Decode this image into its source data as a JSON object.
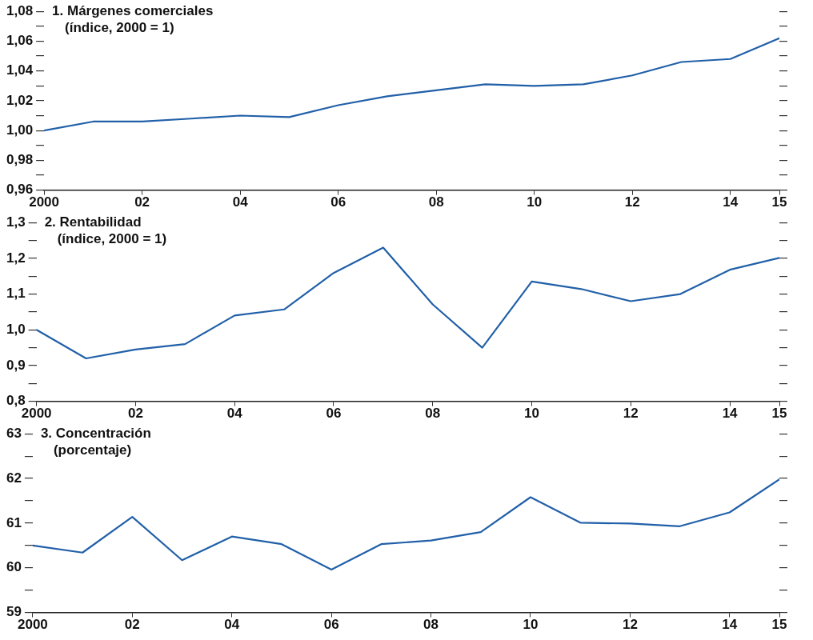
{
  "chart_data": [
    {
      "type": "line",
      "title": "1. Márgenes comerciales",
      "subtitle": "(índice, 2000 = 1)",
      "x": [
        2000,
        2001,
        2002,
        2003,
        2004,
        2005,
        2006,
        2007,
        2008,
        2009,
        2010,
        2011,
        2012,
        2013,
        2014,
        2015
      ],
      "series": [
        {
          "color": "#2160a8",
          "values": [
            1.0,
            1.006,
            1.006,
            1.008,
            1.01,
            1.009,
            1.017,
            1.023,
            1.027,
            1.031,
            1.03,
            1.031,
            1.037,
            1.046,
            1.048,
            1.062
          ]
        }
      ],
      "xlim": [
        2000,
        2015
      ],
      "xticks": [
        {
          "value": 2000,
          "label": "2000"
        },
        {
          "value": 2002,
          "label": "02"
        },
        {
          "value": 2004,
          "label": "04"
        },
        {
          "value": 2006,
          "label": "06"
        },
        {
          "value": 2008,
          "label": "08"
        },
        {
          "value": 2010,
          "label": "10"
        },
        {
          "value": 2012,
          "label": "12"
        },
        {
          "value": 2014,
          "label": "14"
        },
        {
          "value": 2015,
          "label": "15"
        }
      ],
      "ylim": [
        0.96,
        1.08
      ],
      "yticks": [
        {
          "value": 0.96,
          "label": "0,96"
        },
        {
          "value": 0.97,
          "label": null
        },
        {
          "value": 0.98,
          "label": "0,98"
        },
        {
          "value": 0.99,
          "label": null
        },
        {
          "value": 1.0,
          "label": "1,00"
        },
        {
          "value": 1.01,
          "label": null
        },
        {
          "value": 1.02,
          "label": "1,02"
        },
        {
          "value": 1.03,
          "label": null
        },
        {
          "value": 1.04,
          "label": "1,04"
        },
        {
          "value": 1.05,
          "label": null
        },
        {
          "value": 1.06,
          "label": "1,06"
        },
        {
          "value": 1.07,
          "label": null
        },
        {
          "value": 1.08,
          "label": "1,08"
        }
      ],
      "grid": false,
      "legend": false,
      "marker": "none",
      "line_style": "solid"
    },
    {
      "type": "line",
      "title": "2. Rentabilidad",
      "subtitle": "(índice, 2000 = 1)",
      "x": [
        2000,
        2001,
        2002,
        2003,
        2004,
        2005,
        2006,
        2007,
        2008,
        2009,
        2010,
        2011,
        2012,
        2013,
        2014,
        2015
      ],
      "series": [
        {
          "color": "#2160a8",
          "values": [
            1.0,
            0.92,
            0.945,
            0.96,
            1.04,
            1.057,
            1.159,
            1.23,
            1.071,
            0.95,
            1.135,
            1.114,
            1.08,
            1.1,
            1.168,
            1.201
          ]
        }
      ],
      "xlim": [
        2000,
        2015
      ],
      "xticks": [
        {
          "value": 2000,
          "label": "2000"
        },
        {
          "value": 2002,
          "label": "02"
        },
        {
          "value": 2004,
          "label": "04"
        },
        {
          "value": 2006,
          "label": "06"
        },
        {
          "value": 2008,
          "label": "08"
        },
        {
          "value": 2010,
          "label": "10"
        },
        {
          "value": 2012,
          "label": "12"
        },
        {
          "value": 2014,
          "label": "14"
        },
        {
          "value": 2015,
          "label": "15"
        }
      ],
      "ylim": [
        0.8,
        1.3
      ],
      "yticks": [
        {
          "value": 0.8,
          "label": "0,8"
        },
        {
          "value": 0.85,
          "label": null
        },
        {
          "value": 0.9,
          "label": "0,9"
        },
        {
          "value": 0.95,
          "label": null
        },
        {
          "value": 1.0,
          "label": "1,0"
        },
        {
          "value": 1.05,
          "label": null
        },
        {
          "value": 1.1,
          "label": "1,1"
        },
        {
          "value": 1.15,
          "label": null
        },
        {
          "value": 1.2,
          "label": "1,2"
        },
        {
          "value": 1.25,
          "label": null
        },
        {
          "value": 1.3,
          "label": "1,3"
        }
      ],
      "grid": false,
      "legend": false,
      "marker": "none",
      "line_style": "solid"
    },
    {
      "type": "line",
      "title": "3. Concentración",
      "subtitle": "(porcentaje)",
      "x": [
        2000,
        2001,
        2002,
        2003,
        2004,
        2005,
        2006,
        2007,
        2008,
        2009,
        2010,
        2011,
        2012,
        2013,
        2014,
        2015
      ],
      "series": [
        {
          "color": "#2160a8",
          "values": [
            60.5,
            60.34,
            61.14,
            60.17,
            60.7,
            60.53,
            59.96,
            60.53,
            60.61,
            60.8,
            61.58,
            61.01,
            60.99,
            60.93,
            61.24,
            61.98
          ]
        }
      ],
      "xlim": [
        2000,
        2015
      ],
      "xticks": [
        {
          "value": 2000,
          "label": "2000"
        },
        {
          "value": 2002,
          "label": "02"
        },
        {
          "value": 2004,
          "label": "04"
        },
        {
          "value": 2006,
          "label": "06"
        },
        {
          "value": 2008,
          "label": "08"
        },
        {
          "value": 2010,
          "label": "10"
        },
        {
          "value": 2012,
          "label": "12"
        },
        {
          "value": 2014,
          "label": "14"
        },
        {
          "value": 2015,
          "label": "15"
        }
      ],
      "ylim": [
        59,
        63
      ],
      "yticks": [
        59,
        {
          "value": 59.5,
          "label": null
        },
        60,
        {
          "value": 60.5,
          "label": null
        },
        61,
        {
          "value": 61.5,
          "label": null
        },
        62,
        {
          "value": 62.5,
          "label": null
        },
        63
      ],
      "grid": false,
      "legend": false,
      "marker": "none",
      "line_style": "solid"
    }
  ]
}
